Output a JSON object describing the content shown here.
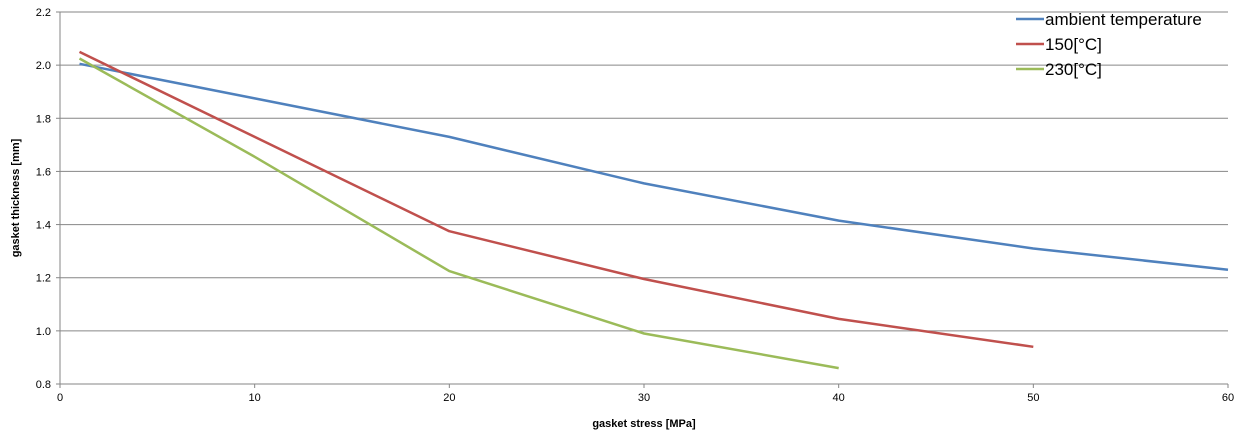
{
  "chart_data": {
    "type": "line",
    "title": "",
    "xlabel": "gasket stress [MPa]",
    "ylabel": "gasket thickness [mm]",
    "xlim": [
      0,
      60
    ],
    "ylim": [
      0.8,
      2.2
    ],
    "xticks": [
      "0",
      "10",
      "20",
      "30",
      "40",
      "50",
      "60"
    ],
    "yticks": [
      "0.8",
      "1.0",
      "1.2",
      "1.4",
      "1.6",
      "1.8",
      "2.0",
      "2.2"
    ],
    "grid": "horizontal",
    "legend_position": "top-right",
    "series": [
      {
        "name": "ambient temperature",
        "color": "#4f81bd",
        "x": [
          1,
          10,
          20,
          30,
          40,
          50,
          60
        ],
        "y": [
          2.005,
          1.875,
          1.73,
          1.555,
          1.415,
          1.31,
          1.23
        ]
      },
      {
        "name": "150[°C]",
        "color": "#c0504d",
        "x": [
          1,
          10,
          20,
          30,
          40,
          50
        ],
        "y": [
          2.05,
          1.73,
          1.375,
          1.195,
          1.045,
          0.94
        ]
      },
      {
        "name": "230[°C]",
        "color": "#9bbb59",
        "x": [
          1,
          10,
          20,
          30,
          40
        ],
        "y": [
          2.025,
          1.655,
          1.225,
          0.99,
          0.86
        ]
      }
    ]
  }
}
